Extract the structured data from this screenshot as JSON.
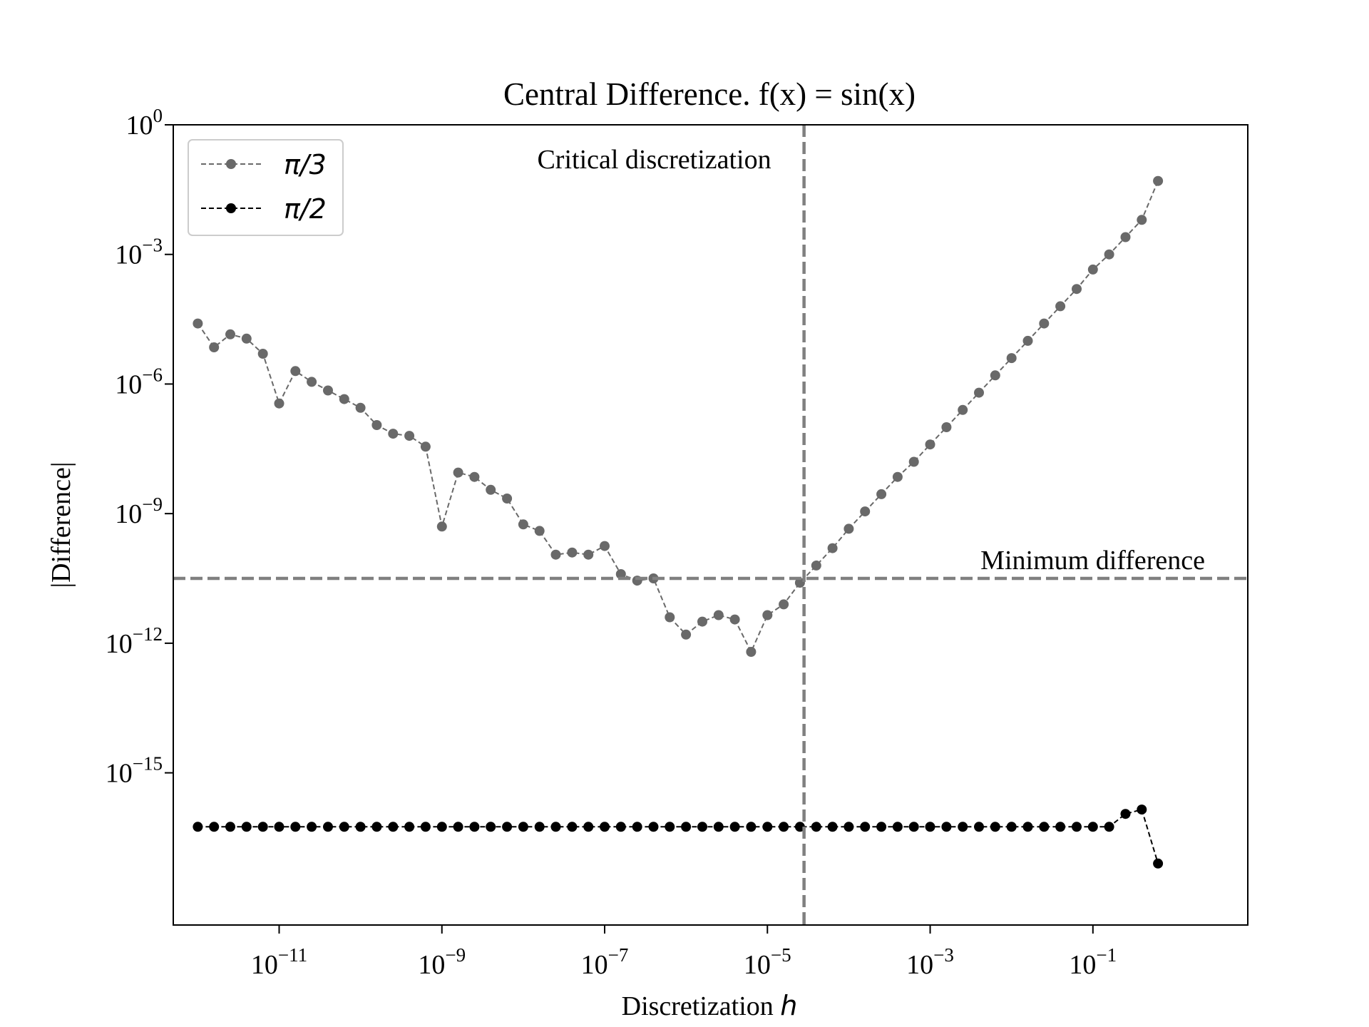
{
  "chart_data": {
    "type": "line",
    "title": "Central Difference. f(x) = sin(x)",
    "xlabel_text": "Discretization ",
    "xlabel_var": "h",
    "ylabel": "|Difference|",
    "xscale": "log",
    "yscale": "log",
    "xlim": [
      5e-13,
      8
    ],
    "ylim": [
      3e-19,
      1
    ],
    "xticks": [
      {
        "value": 1e-11,
        "base": "10",
        "exp": "−11"
      },
      {
        "value": 1e-09,
        "base": "10",
        "exp": "−9"
      },
      {
        "value": 1e-07,
        "base": "10",
        "exp": "−7"
      },
      {
        "value": 1e-05,
        "base": "10",
        "exp": "−5"
      },
      {
        "value": 0.001,
        "base": "10",
        "exp": "−3"
      },
      {
        "value": 0.1,
        "base": "10",
        "exp": "−1"
      }
    ],
    "yticks": [
      {
        "value": 1,
        "base": "10",
        "exp": "0"
      },
      {
        "value": 0.001,
        "base": "10",
        "exp": "−3"
      },
      {
        "value": 1e-06,
        "base": "10",
        "exp": "−6"
      },
      {
        "value": 1e-09,
        "base": "10",
        "exp": "−9"
      },
      {
        "value": 1e-12,
        "base": "10",
        "exp": "−12"
      },
      {
        "value": 1e-15,
        "base": "10",
        "exp": "−15"
      }
    ],
    "legend_position": "top-left",
    "series": [
      {
        "name": "π/3",
        "color": "#696969",
        "line_style": "dashed",
        "marker": "circle",
        "log10_x": [
          -12,
          -11.8,
          -11.6,
          -11.4,
          -11.2,
          -11,
          -10.8,
          -10.6,
          -10.4,
          -10.2,
          -10,
          -9.8,
          -9.6,
          -9.4,
          -9.2,
          -9,
          -8.8,
          -8.6,
          -8.4,
          -8.2,
          -8,
          -7.8,
          -7.6,
          -7.4,
          -7.2,
          -7,
          -6.8,
          -6.6,
          -6.4,
          -6.2,
          -6,
          -5.8,
          -5.6,
          -5.4,
          -5.2,
          -5,
          -4.8,
          -4.6,
          -4.4,
          -4.2,
          -4,
          -3.8,
          -3.6,
          -3.4,
          -3.2,
          -3,
          -2.8,
          -2.6,
          -2.4,
          -2.2,
          -2,
          -1.8,
          -1.6,
          -1.4,
          -1.2,
          -1,
          -0.8,
          -0.6,
          -0.4,
          -0.2
        ],
        "log10_y": [
          -4.6,
          -5.15,
          -4.85,
          -4.95,
          -5.3,
          -6.45,
          -5.7,
          -5.95,
          -6.15,
          -6.35,
          -6.55,
          -6.95,
          -7.15,
          -7.2,
          -7.45,
          -9.3,
          -8.05,
          -8.15,
          -8.45,
          -8.65,
          -9.25,
          -9.4,
          -9.95,
          -9.9,
          -9.95,
          -9.75,
          -10.4,
          -10.55,
          -10.5,
          -11.4,
          -11.8,
          -11.5,
          -11.35,
          -11.45,
          -12.2,
          -11.35,
          -11.1,
          -10.6,
          -10.2,
          -9.8,
          -9.35,
          -8.95,
          -8.55,
          -8.15,
          -7.8,
          -7.4,
          -7.0,
          -6.6,
          -6.2,
          -5.8,
          -5.4,
          -5.0,
          -4.6,
          -4.2,
          -3.8,
          -3.35,
          -3.0,
          -2.6,
          -2.2,
          -1.3
        ]
      },
      {
        "name": "π/2",
        "color": "#000000",
        "line_style": "dashed",
        "marker": "circle",
        "log10_x": [
          -12,
          -11.8,
          -11.6,
          -11.4,
          -11.2,
          -11,
          -10.8,
          -10.6,
          -10.4,
          -10.2,
          -10,
          -9.8,
          -9.6,
          -9.4,
          -9.2,
          -9,
          -8.8,
          -8.6,
          -8.4,
          -8.2,
          -8,
          -7.8,
          -7.6,
          -7.4,
          -7.2,
          -7,
          -6.8,
          -6.6,
          -6.4,
          -6.2,
          -6,
          -5.8,
          -5.6,
          -5.4,
          -5.2,
          -5,
          -4.8,
          -4.6,
          -4.4,
          -4.2,
          -4,
          -3.8,
          -3.6,
          -3.4,
          -3.2,
          -3,
          -2.8,
          -2.6,
          -2.4,
          -2.2,
          -2,
          -1.8,
          -1.6,
          -1.4,
          -1.2,
          -1,
          -0.8,
          -0.6,
          -0.4,
          -0.2
        ],
        "log10_y": [
          -16.25,
          -16.25,
          -16.25,
          -16.25,
          -16.25,
          -16.25,
          -16.25,
          -16.25,
          -16.25,
          -16.25,
          -16.25,
          -16.25,
          -16.25,
          -16.25,
          -16.25,
          -16.25,
          -16.25,
          -16.25,
          -16.25,
          -16.25,
          -16.25,
          -16.25,
          -16.25,
          -16.25,
          -16.25,
          -16.25,
          -16.25,
          -16.25,
          -16.25,
          -16.25,
          -16.25,
          -16.25,
          -16.25,
          -16.25,
          -16.25,
          -16.25,
          -16.25,
          -16.25,
          -16.25,
          -16.25,
          -16.25,
          -16.25,
          -16.25,
          -16.25,
          -16.25,
          -16.25,
          -16.25,
          -16.25,
          -16.25,
          -16.25,
          -16.25,
          -16.25,
          -16.25,
          -16.25,
          -16.25,
          -16.25,
          -16.25,
          -15.95,
          -15.85,
          -17.1
        ]
      }
    ],
    "reference_lines": [
      {
        "orientation": "vertical",
        "log10_value": -4.55,
        "label": "Critical discretization",
        "color": "#808080",
        "style": "dashed"
      },
      {
        "orientation": "horizontal",
        "log10_value": -10.5,
        "label": "Minimum difference",
        "color": "#808080",
        "style": "dashed"
      }
    ]
  }
}
